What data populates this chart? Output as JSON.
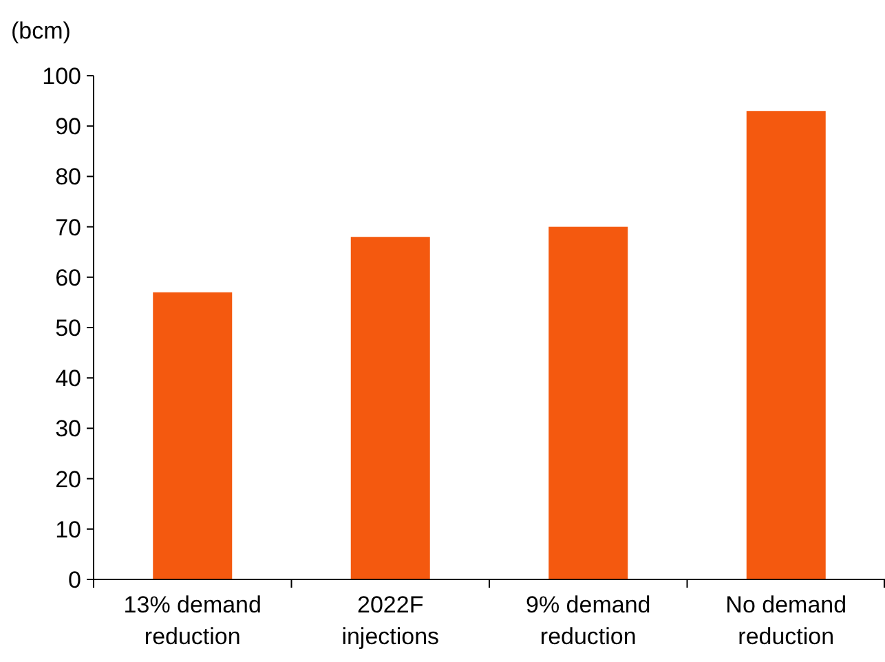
{
  "chart_data": {
    "type": "bar",
    "ylabel": "(bcm)",
    "categories": [
      "13% demand reduction",
      "2022F injections",
      "9% demand reduction",
      "No demand reduction"
    ],
    "values": [
      57,
      68,
      70,
      93
    ],
    "color": "#f4590f",
    "ylim": [
      0,
      100
    ],
    "yticks": [
      0,
      10,
      20,
      30,
      40,
      50,
      60,
      70,
      80,
      90,
      100
    ],
    "grid": false
  }
}
